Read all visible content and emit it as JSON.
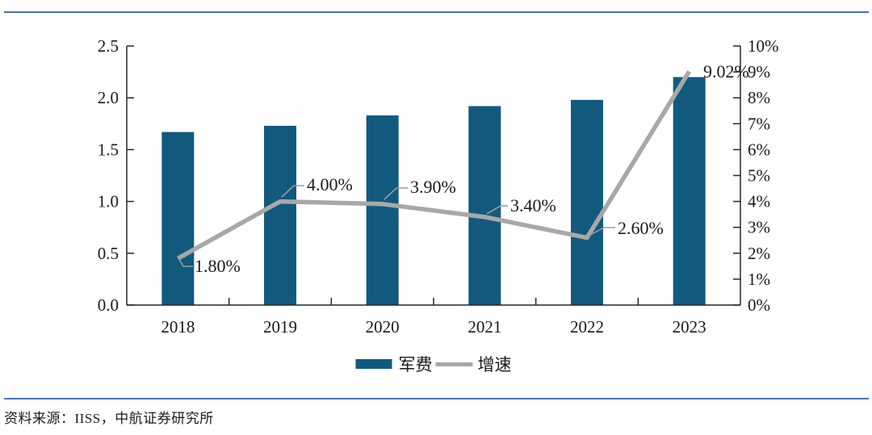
{
  "page": {
    "source_text": "资料来源：IISS，中航证券研究所",
    "rule_color": "#4472c4"
  },
  "chart_data": {
    "type": "combo-bar-line",
    "categories": [
      "2018",
      "2019",
      "2020",
      "2021",
      "2022",
      "2023"
    ],
    "series": [
      {
        "name": "军费",
        "type": "bar",
        "axis": "left",
        "color": "#115a7e",
        "values": [
          1.67,
          1.73,
          1.83,
          1.92,
          1.98,
          2.2
        ]
      },
      {
        "name": "增速",
        "type": "line",
        "axis": "right",
        "color": "#a8a8a8",
        "values": [
          1.8,
          4.0,
          3.9,
          3.4,
          2.6,
          9.02
        ],
        "unit": "%",
        "labels": [
          "1.80%",
          "4.00%",
          "3.90%",
          "3.40%",
          "2.60%",
          "9.02%"
        ]
      }
    ],
    "left_axis": {
      "min": 0.0,
      "max": 2.5,
      "ticks": [
        "2.5",
        "2.0",
        "1.5",
        "1.0",
        "0.5",
        "0.0"
      ]
    },
    "right_axis": {
      "min": 0,
      "max": 10,
      "ticks": [
        "10%",
        "9%",
        "8%",
        "7%",
        "6%",
        "5%",
        "4%",
        "3%",
        "2%",
        "1%",
        "0%"
      ]
    },
    "grid": false,
    "legend_position": "bottom-center",
    "axis_color": "#262626",
    "label_color": "#1a1a1a"
  }
}
